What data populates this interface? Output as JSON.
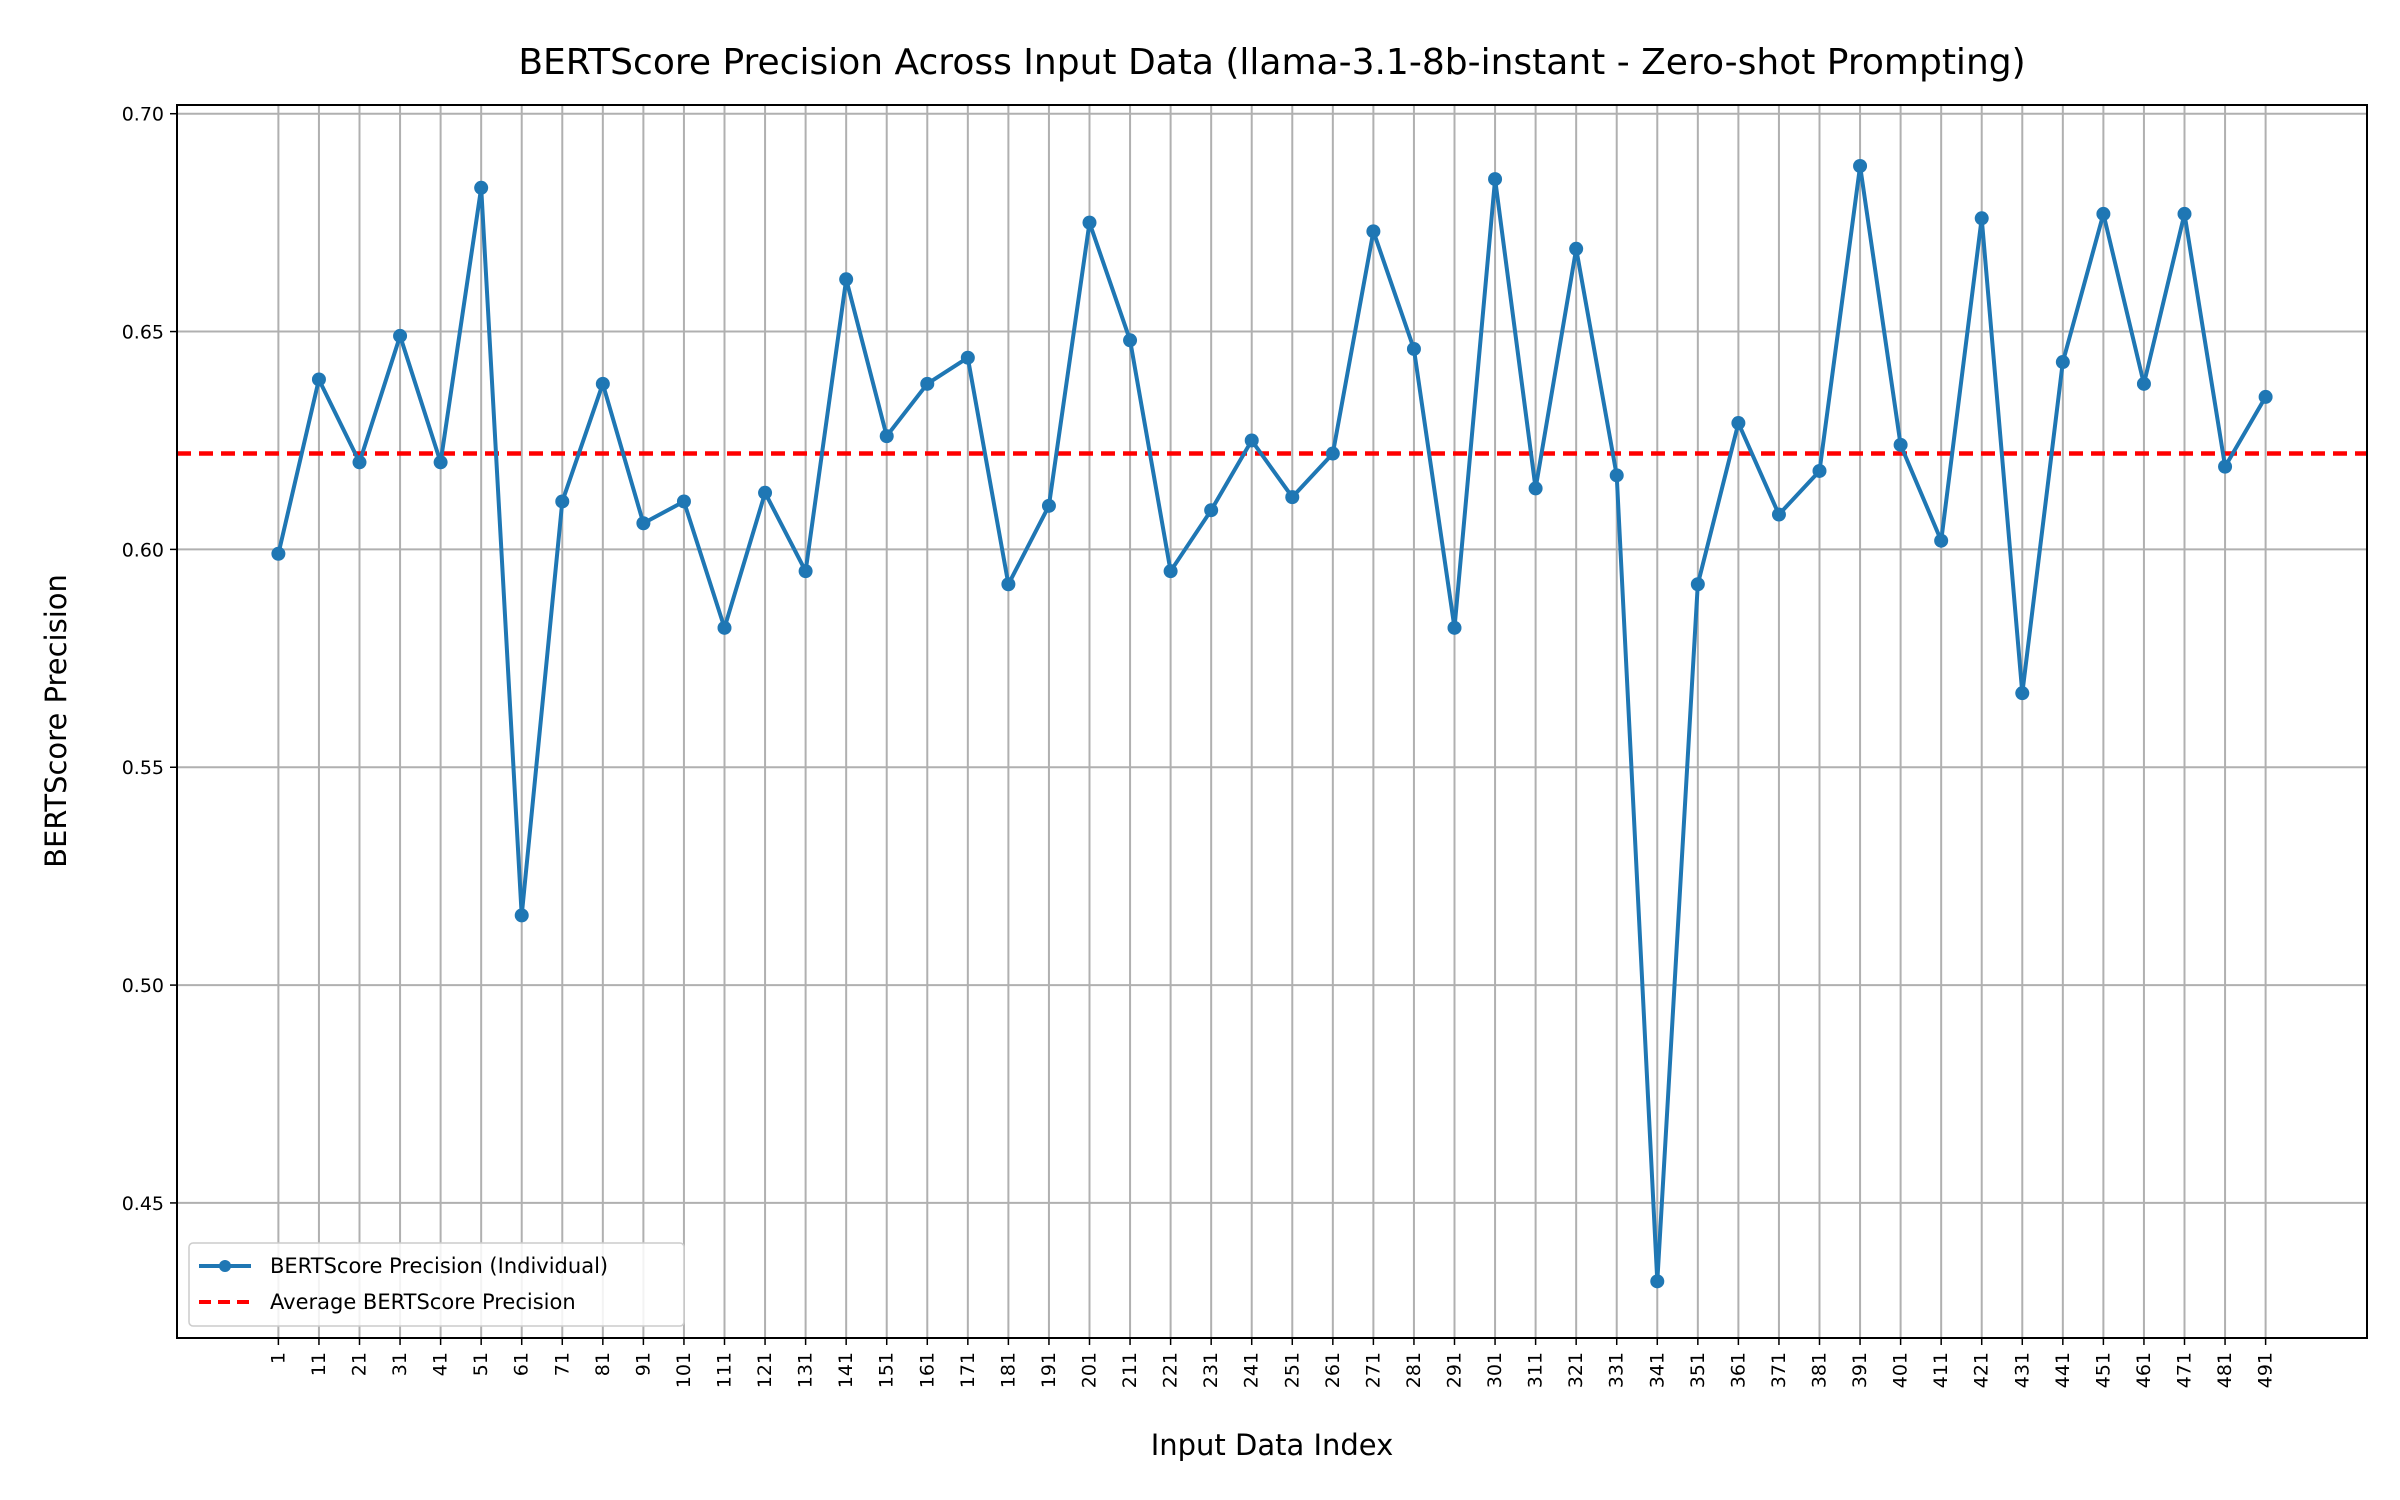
{
  "chart_data": {
    "type": "line",
    "title": "BERTScore Precision Across Input Data (llama-3.1-8b-instant - Zero-shot Prompting)",
    "xlabel": "Input Data Index",
    "ylabel": "BERTScore Precision",
    "x": [
      1,
      11,
      21,
      31,
      41,
      51,
      61,
      71,
      81,
      91,
      101,
      111,
      121,
      131,
      141,
      151,
      161,
      171,
      181,
      191,
      201,
      211,
      221,
      231,
      241,
      251,
      261,
      271,
      281,
      291,
      301,
      311,
      321,
      331,
      341,
      351,
      361,
      371,
      381,
      391,
      401,
      411,
      421,
      431,
      441,
      451,
      461,
      471,
      481,
      491
    ],
    "xtick_labels": [
      "1",
      "11",
      "21",
      "31",
      "41",
      "51",
      "61",
      "71",
      "81",
      "91",
      "101",
      "111",
      "121",
      "131",
      "141",
      "151",
      "161",
      "171",
      "181",
      "191",
      "201",
      "211",
      "221",
      "231",
      "241",
      "251",
      "261",
      "271",
      "281",
      "291",
      "301",
      "311",
      "321",
      "331",
      "341",
      "351",
      "361",
      "371",
      "381",
      "391",
      "401",
      "411",
      "421",
      "431",
      "441",
      "451",
      "461",
      "471",
      "481",
      "491"
    ],
    "xlim": [
      -24,
      516
    ],
    "ylim": [
      0.419,
      0.702
    ],
    "yticks": [
      0.45,
      0.5,
      0.55,
      0.6,
      0.65,
      0.7
    ],
    "ytick_labels": [
      "0.45",
      "0.50",
      "0.55",
      "0.60",
      "0.65",
      "0.70"
    ],
    "grid": true,
    "legend_position": "lower-left",
    "series": [
      {
        "name": "BERTScore Precision (Individual)",
        "color": "#1f77b4",
        "style": "solid-with-markers",
        "values": [
          0.599,
          0.639,
          0.62,
          0.649,
          0.62,
          0.683,
          0.516,
          0.611,
          0.638,
          0.606,
          0.611,
          0.582,
          0.613,
          0.595,
          0.662,
          0.626,
          0.638,
          0.644,
          0.592,
          0.61,
          0.675,
          0.648,
          0.595,
          0.609,
          0.625,
          0.612,
          0.622,
          0.673,
          0.646,
          0.582,
          0.685,
          0.614,
          0.669,
          0.617,
          0.432,
          0.592,
          0.629,
          0.608,
          0.618,
          0.688,
          0.624,
          0.602,
          0.676,
          0.567,
          0.643,
          0.677,
          0.638,
          0.677,
          0.619,
          0.635
        ]
      },
      {
        "name": "Average BERTScore Precision",
        "color": "#ff0000",
        "style": "dashed",
        "value": 0.622
      }
    ]
  }
}
